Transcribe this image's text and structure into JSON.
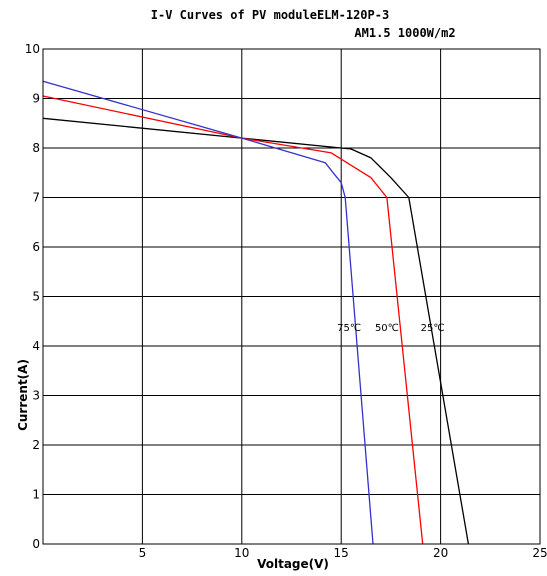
{
  "chart_data": {
    "type": "line",
    "title": "I-V Curves of PV moduleELM-120P-3",
    "subtitle": "AM1.5 1000W/m2",
    "xlabel": "Voltage(V)",
    "ylabel": "Current(A)",
    "xlim": [
      0,
      25
    ],
    "ylim": [
      0,
      10
    ],
    "x_ticks": [
      5,
      10,
      15,
      20,
      25
    ],
    "x_tick_labels": [
      "5",
      "10",
      "15",
      "20",
      "25"
    ],
    "y_ticks": [
      0,
      1,
      2,
      3,
      4,
      5,
      6,
      7,
      8,
      9,
      10
    ],
    "y_tick_labels": [
      "0",
      "1",
      "2",
      "3",
      "4",
      "5",
      "6",
      "7",
      "8",
      "9",
      "10"
    ],
    "grid": true,
    "series": [
      {
        "name": "25℃",
        "color": "#000000",
        "x": [
          0,
          10,
          15.5,
          16.5,
          17.5,
          18.4,
          21.4
        ],
        "y": [
          8.6,
          8.2,
          7.98,
          7.8,
          7.4,
          7.0,
          0
        ]
      },
      {
        "name": "50℃",
        "color": "#ff0000",
        "x": [
          0,
          10,
          14.5,
          15.5,
          16.5,
          17.3,
          19.1
        ],
        "y": [
          9.05,
          8.2,
          7.9,
          7.65,
          7.4,
          7.0,
          0
        ]
      },
      {
        "name": "75℃",
        "color": "#3333cc",
        "x": [
          0,
          10,
          14.2,
          14.6,
          15.0,
          15.2,
          16.6
        ],
        "y": [
          9.35,
          8.2,
          7.7,
          7.5,
          7.3,
          7.0,
          0
        ]
      }
    ],
    "annotations": [
      {
        "text": "75℃",
        "x": 15.4,
        "y": 4.3
      },
      {
        "text": "50℃",
        "x": 17.3,
        "y": 4.3
      },
      {
        "text": "25℃",
        "x": 19.6,
        "y": 4.3
      }
    ]
  }
}
